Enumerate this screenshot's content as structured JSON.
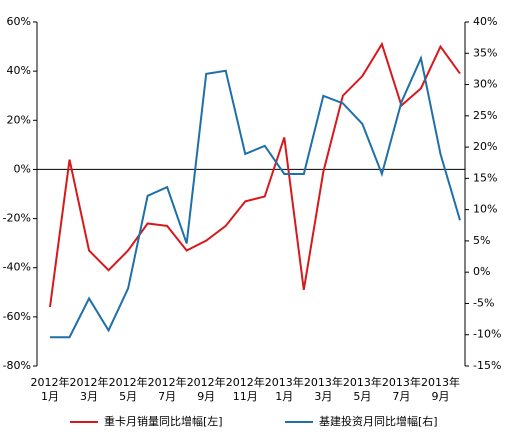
{
  "chart_data": {
    "type": "line",
    "categories": [
      "2012年\n1月",
      null,
      "2012年\n3月",
      null,
      "2012年\n5月",
      null,
      "2012年\n7月",
      null,
      "2012年\n9月",
      null,
      "2012年\n11月",
      null,
      "2013年\n1月",
      null,
      "2013年\n3月",
      null,
      "2013年\n5月",
      null,
      "2013年\n7月",
      null,
      "2013年\n9月",
      null
    ],
    "series": [
      {
        "name": "重卡月销量同比增幅[左]",
        "color": "#d7191c",
        "values": [
          -56,
          4,
          -33,
          -41,
          -33,
          -22,
          -23,
          -33,
          -29,
          -23,
          -13,
          -11,
          13,
          -49,
          -1,
          30,
          38,
          51,
          26,
          33,
          50,
          39
        ]
      },
      {
        "name": "基建投资月同比增幅[右]",
        "color": "#1f6fa8",
        "axis": "y2",
        "values": [
          -10.4,
          -10.4,
          -4.2,
          -9.3,
          -2.6,
          12.2,
          13.6,
          4.6,
          31.7,
          32.2,
          18.9,
          20.2,
          15.7,
          15.7,
          28.2,
          27,
          23.7,
          15.7,
          27.2,
          34.2,
          18.9,
          8.3
        ]
      }
    ],
    "ylim": [
      -80,
      60
    ],
    "yticks": [
      {
        "value": -80,
        "label": "-80%"
      },
      {
        "value": -60,
        "label": "-60%"
      },
      {
        "value": -40,
        "label": "-40%"
      },
      {
        "value": -20,
        "label": "-20%"
      },
      {
        "value": 0,
        "label": "0%"
      },
      {
        "value": 20,
        "label": "20%"
      },
      {
        "value": 40,
        "label": "40%"
      },
      {
        "value": 60,
        "label": "60%"
      }
    ],
    "y2lim": [
      -15,
      40
    ],
    "y2ticks": [
      {
        "value": -15,
        "label": "-15%"
      },
      {
        "value": -10,
        "label": "-10%"
      },
      {
        "value": -5,
        "label": "-5%"
      },
      {
        "value": 0,
        "label": "0%"
      },
      {
        "value": 5,
        "label": "5%"
      },
      {
        "value": 10,
        "label": "10%"
      },
      {
        "value": 15,
        "label": "15%"
      },
      {
        "value": 20,
        "label": "20%"
      },
      {
        "value": 25,
        "label": "25%"
      },
      {
        "value": 30,
        "label": "30%"
      },
      {
        "value": 35,
        "label": "35%"
      },
      {
        "value": 40,
        "label": "40%"
      }
    ],
    "legend": "bottom"
  }
}
